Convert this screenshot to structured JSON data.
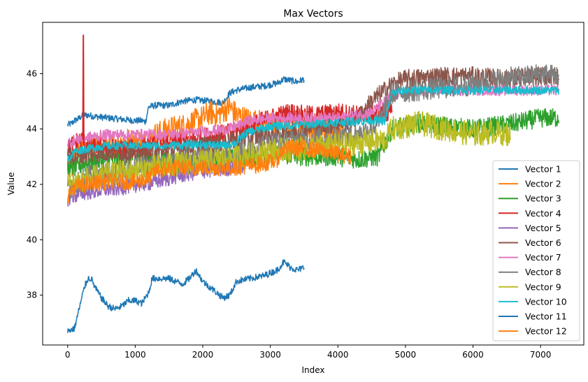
{
  "chart_data": {
    "type": "line",
    "title": "Max Vectors",
    "xlabel": "Index",
    "ylabel": "Value",
    "xlim": [
      -370,
      7640
    ],
    "ylim": [
      36.2,
      47.85
    ],
    "xticks": [
      0,
      1000,
      2000,
      3000,
      4000,
      5000,
      6000,
      7000
    ],
    "yticks": [
      38,
      40,
      42,
      44,
      46
    ],
    "grid": false,
    "legend_position": "lower-right",
    "series": [
      {
        "name": "Vector 1",
        "color": "#1f77b4",
        "noise": 0.12,
        "x": [
          0,
          60,
          100,
          150,
          200,
          250,
          300,
          400,
          600,
          800,
          1000,
          1100,
          1150,
          1200,
          1300,
          1500,
          1700,
          1900,
          2100,
          2300,
          2400,
          2500,
          2700,
          2900,
          3000,
          3100,
          3200,
          3300,
          3400,
          3500
        ],
        "y": [
          44.15,
          44.2,
          44.3,
          44.35,
          44.45,
          44.5,
          44.5,
          44.45,
          44.4,
          44.35,
          44.3,
          44.3,
          44.25,
          44.8,
          44.85,
          44.85,
          45.0,
          45.05,
          45.0,
          44.95,
          45.3,
          45.4,
          45.5,
          45.55,
          45.6,
          45.65,
          45.8,
          45.75,
          45.7,
          45.8
        ]
      },
      {
        "name": "Vector 2",
        "color": "#ff7f0e",
        "noise": 0.45,
        "x": [
          0,
          200,
          500,
          800,
          1000,
          1200,
          1300,
          1500,
          1700,
          1900,
          2000,
          2100,
          2200,
          2400,
          2500,
          2700,
          3000,
          3200,
          3500,
          4000,
          4200
        ],
        "y": [
          42.5,
          43.2,
          43.4,
          43.5,
          43.6,
          43.5,
          43.8,
          44.0,
          44.1,
          44.3,
          44.4,
          44.6,
          44.5,
          44.8,
          44.5,
          44.3,
          44.2,
          44.1,
          44.0,
          43.9,
          43.8
        ]
      },
      {
        "name": "Vector 3",
        "color": "#2ca02c",
        "noise": 0.35,
        "x": [
          0,
          300,
          700,
          1000,
          1300,
          1700,
          2000,
          2300,
          2700,
          3000,
          3500,
          4000,
          4300,
          4600,
          4800,
          5200,
          5600,
          6000,
          6300,
          6600,
          7000,
          7270
        ],
        "y": [
          42.5,
          42.8,
          42.9,
          43.0,
          42.9,
          42.7,
          42.8,
          42.9,
          43.0,
          43.1,
          43.0,
          43.0,
          42.9,
          43.0,
          44.0,
          44.2,
          44.1,
          44.0,
          44.1,
          44.2,
          44.4,
          44.4
        ]
      },
      {
        "name": "Vector 4",
        "color": "#d62728",
        "noise": 0.35,
        "x": [
          0,
          100,
          200,
          230,
          250,
          300,
          600,
          1000,
          1500,
          2000,
          2500,
          2800,
          3000,
          3300,
          3500,
          3700,
          4000,
          4300,
          4600,
          4800
        ],
        "y": [
          43.3,
          43.5,
          43.6,
          43.6,
          43.5,
          43.4,
          43.3,
          43.3,
          43.5,
          43.7,
          43.9,
          44.2,
          44.4,
          44.6,
          44.5,
          44.5,
          44.6,
          44.5,
          44.6,
          44.6
        ]
      },
      {
        "name": "Vector 5",
        "color": "#9467bd",
        "noise": 0.3,
        "x": [
          0,
          200,
          500,
          800,
          1000,
          1300,
          1600,
          2000,
          2400,
          2600
        ],
        "y": [
          41.5,
          41.7,
          41.8,
          41.9,
          42.0,
          42.1,
          42.3,
          42.5,
          42.6,
          42.7
        ]
      },
      {
        "name": "Vector 6",
        "color": "#8c564b",
        "noise": 0.35,
        "x": [
          0,
          300,
          700,
          1000,
          1500,
          2000,
          2500,
          3000,
          3500,
          4000,
          4300,
          4500,
          4800,
          5000,
          5500,
          6000,
          6500,
          7000,
          7270
        ],
        "y": [
          43.0,
          43.1,
          43.2,
          43.1,
          43.2,
          43.4,
          43.6,
          43.8,
          44.0,
          44.2,
          44.4,
          45.0,
          45.6,
          45.8,
          45.9,
          45.9,
          45.8,
          45.9,
          45.9
        ]
      },
      {
        "name": "Vector 7",
        "color": "#e377c2",
        "noise": 0.2,
        "x": [
          0,
          100,
          300,
          600,
          1000,
          1500,
          2000,
          2400,
          2700,
          3000,
          3500,
          4000,
          4500,
          4800,
          5000,
          5500,
          6000,
          6500,
          7000,
          7270
        ],
        "y": [
          43.5,
          43.6,
          43.7,
          43.8,
          43.8,
          43.8,
          43.9,
          44.0,
          44.3,
          44.4,
          44.4,
          44.4,
          44.6,
          45.2,
          45.3,
          45.4,
          45.4,
          45.4,
          45.4,
          45.4
        ]
      },
      {
        "name": "Vector 8",
        "color": "#7f7f7f",
        "noise": 0.4,
        "x": [
          0,
          300,
          600,
          1000,
          1500,
          2000,
          2500,
          3000,
          3500,
          4000,
          4300,
          4600,
          4800,
          5200,
          5600,
          6000,
          6400,
          6800,
          7000,
          7270
        ],
        "y": [
          41.8,
          42.3,
          42.4,
          42.6,
          42.8,
          43.0,
          43.2,
          43.5,
          43.6,
          43.7,
          43.8,
          44.2,
          45.3,
          45.4,
          45.5,
          45.6,
          45.8,
          45.9,
          46.0,
          45.9
        ]
      },
      {
        "name": "Vector 9",
        "color": "#bcbd22",
        "noise": 0.45,
        "x": [
          0,
          300,
          700,
          1000,
          1500,
          2000,
          2500,
          3000,
          3500,
          4000,
          4300,
          4700,
          4800,
          5200,
          5600,
          6000,
          6300,
          6550
        ],
        "y": [
          42.0,
          42.2,
          42.4,
          42.5,
          42.7,
          42.8,
          43.0,
          43.2,
          43.3,
          43.4,
          43.5,
          43.6,
          44.0,
          44.2,
          44.0,
          43.8,
          43.9,
          43.8
        ]
      },
      {
        "name": "Vector 10",
        "color": "#17becf",
        "noise": 0.15,
        "x": [
          0,
          50,
          100,
          300,
          600,
          1000,
          1500,
          2000,
          2300,
          2500,
          2600,
          2700,
          3000,
          3500,
          4000,
          4500,
          4700,
          4800,
          5000,
          5500,
          6000,
          6500,
          7000,
          7270
        ],
        "y": [
          42.9,
          43.0,
          43.2,
          43.3,
          43.4,
          43.4,
          43.4,
          43.45,
          43.4,
          43.5,
          43.8,
          43.9,
          44.1,
          44.15,
          44.25,
          44.3,
          44.3,
          45.3,
          45.4,
          45.4,
          45.4,
          45.4,
          45.4,
          45.4
        ]
      },
      {
        "name": "Vector 11",
        "color": "#1f77b4",
        "noise": 0.12,
        "x": [
          0,
          100,
          150,
          200,
          250,
          300,
          350,
          400,
          500,
          600,
          700,
          800,
          900,
          1000,
          1100,
          1200,
          1250,
          1300,
          1500,
          1700,
          1800,
          1900,
          2000,
          2100,
          2200,
          2300,
          2400,
          2500,
          2700,
          2900,
          3100,
          3200,
          3300,
          3400,
          3500
        ],
        "y": [
          36.7,
          36.8,
          37.3,
          37.8,
          38.3,
          38.6,
          38.6,
          38.3,
          37.9,
          37.6,
          37.5,
          37.6,
          37.8,
          37.8,
          37.7,
          38.1,
          38.6,
          38.6,
          38.6,
          38.4,
          38.6,
          38.9,
          38.5,
          38.3,
          38.1,
          37.9,
          38.0,
          38.5,
          38.6,
          38.7,
          38.9,
          39.2,
          39.0,
          38.9,
          39.0
        ]
      },
      {
        "name": "Vector 12",
        "color": "#ff7f0e",
        "noise": 0.3,
        "x": [
          0,
          100,
          300,
          600,
          1000,
          1200,
          1300,
          1600,
          2000,
          2400,
          2800,
          3000,
          3100,
          3200,
          3500,
          3800,
          4000,
          4200
        ],
        "y": [
          41.6,
          41.9,
          42.0,
          42.1,
          42.1,
          42.2,
          42.5,
          42.6,
          42.6,
          42.6,
          42.7,
          42.8,
          42.9,
          43.3,
          43.3,
          43.2,
          43.1,
          43.0
        ]
      }
    ]
  }
}
